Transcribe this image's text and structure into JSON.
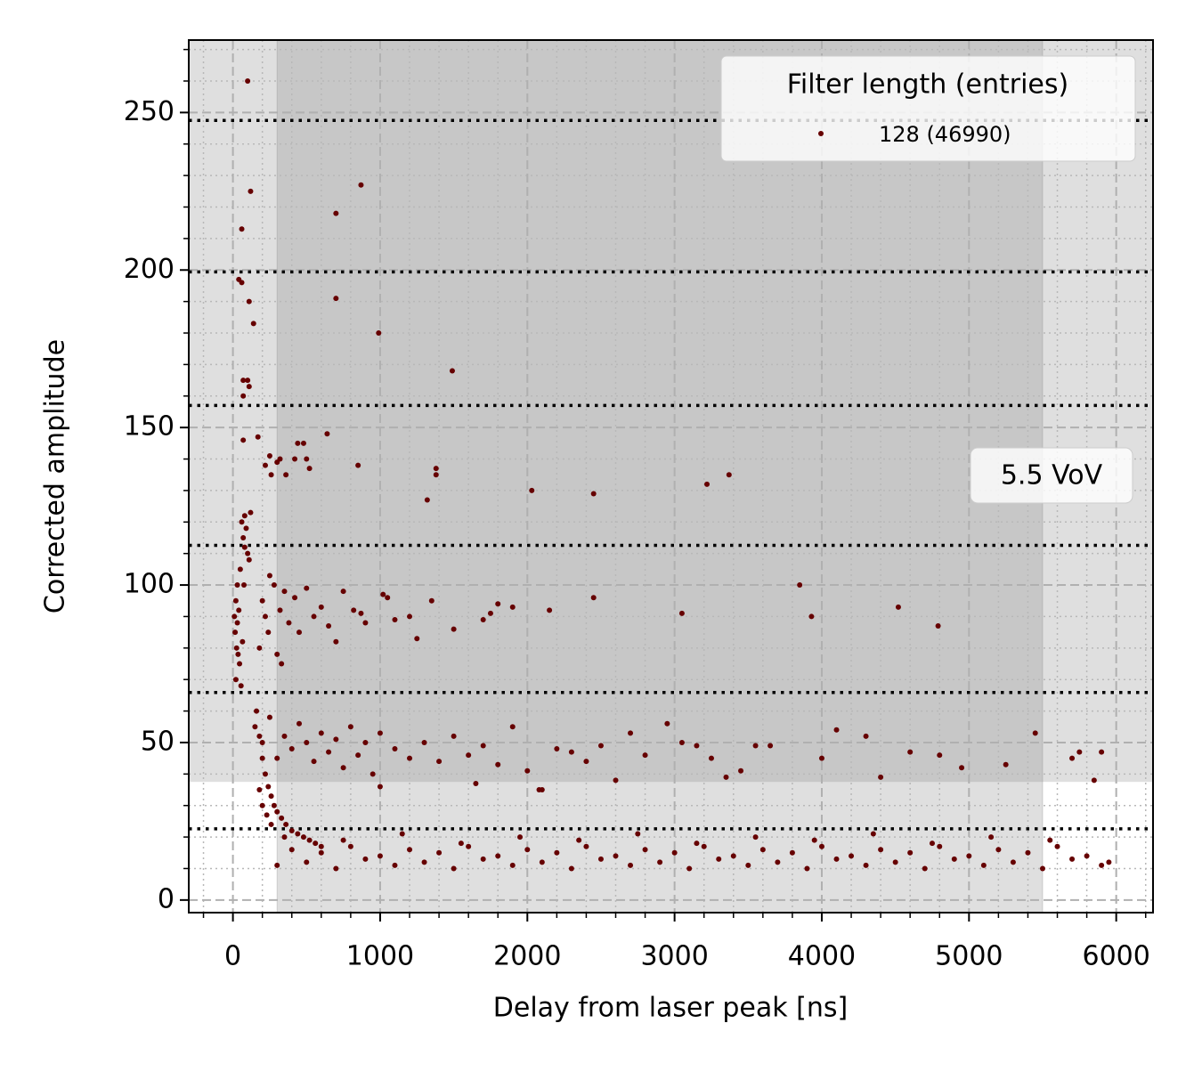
{
  "chart_data": {
    "type": "scatter",
    "xlabel": "Delay from laser peak [ns]",
    "ylabel": "Corrected amplitude",
    "annotation": "5.5 VoV",
    "legend_title": "Filter length (entries)",
    "legend": "upper right",
    "xlim": [
      -300,
      6250
    ],
    "ylim": [
      -4,
      273
    ],
    "xticks": [
      0,
      1000,
      2000,
      3000,
      4000,
      5000,
      6000
    ],
    "yticks": [
      0,
      50,
      100,
      150,
      200,
      250
    ],
    "xminor": [
      -200,
      200,
      400,
      600,
      800,
      1200,
      1400,
      1600,
      1800,
      2200,
      2400,
      2600,
      2800,
      3200,
      3400,
      3600,
      3800,
      4200,
      4400,
      4600,
      4800,
      5200,
      5400,
      5600,
      5800,
      6200
    ],
    "yminor": [
      10,
      20,
      30,
      40,
      60,
      70,
      80,
      90,
      110,
      120,
      130,
      140,
      160,
      170,
      180,
      190,
      210,
      220,
      230,
      240,
      260,
      270
    ],
    "grid": true,
    "shaded_x": [
      300,
      5500
    ],
    "shaded_y_min": 37.5,
    "hlines": [
      22.6,
      65.9,
      112.6,
      157,
      199.4,
      247.5
    ],
    "series": [
      {
        "name": "128 (46990)",
        "color": "#660000",
        "x": [
          100,
          120,
          870,
          700,
          60,
          40,
          60,
          700,
          110,
          140,
          990,
          1490,
          70,
          100,
          110,
          70,
          640,
          170,
          70,
          440,
          480,
          500,
          420,
          320,
          220,
          850,
          1380,
          1380,
          3370,
          3220,
          2030,
          2450,
          1320,
          260,
          360,
          520,
          250,
          300,
          80,
          90,
          60,
          70,
          80,
          100,
          110,
          120,
          50,
          30,
          20,
          10,
          15,
          25,
          35,
          45,
          20,
          30,
          40,
          55,
          65,
          75,
          200,
          250,
          280,
          320,
          350,
          380,
          420,
          450,
          500,
          550,
          600,
          650,
          700,
          750,
          820,
          870,
          900,
          1020,
          1050,
          1100,
          1200,
          1250,
          1350,
          1500,
          1700,
          1750,
          1800,
          1900,
          2150,
          2450,
          3050,
          3850,
          3930,
          4520,
          4790,
          220,
          240,
          300,
          330,
          180,
          150,
          200,
          250,
          300,
          350,
          400,
          450,
          500,
          550,
          600,
          650,
          700,
          750,
          800,
          850,
          900,
          950,
          1000,
          1100,
          1200,
          1300,
          1400,
          1500,
          1600,
          1700,
          1800,
          1900,
          2000,
          2100,
          2200,
          2300,
          2400,
          2500,
          2600,
          2700,
          2800,
          2950,
          3050,
          3150,
          3250,
          3350,
          3450,
          3550,
          3650,
          4000,
          4100,
          4300,
          4400,
          4600,
          4800,
          4950,
          5250,
          5450,
          5700,
          5750,
          5850,
          5900,
          1000,
          1650,
          2080,
          160,
          180,
          200,
          220,
          240,
          260,
          280,
          300,
          330,
          360,
          400,
          440,
          480,
          520,
          560,
          600,
          180,
          200,
          230,
          260,
          300,
          500,
          700,
          900,
          1100,
          1300,
          1500,
          1700,
          1900,
          2100,
          2300,
          2500,
          2700,
          2900,
          3100,
          3300,
          3500,
          3700,
          3900,
          4100,
          4300,
          4500,
          4700,
          4900,
          5100,
          5300,
          5500,
          5700,
          5900,
          400,
          600,
          800,
          1000,
          1200,
          1400,
          1600,
          1800,
          2000,
          2200,
          2400,
          2600,
          2800,
          3000,
          3200,
          3400,
          3600,
          3800,
          4000,
          4200,
          4400,
          4600,
          4800,
          5000,
          5200,
          5400,
          5600,
          5800,
          350,
          750,
          1150,
          1550,
          1950,
          2350,
          2750,
          3150,
          3550,
          3950,
          4350,
          4750,
          5150,
          5550,
          5950
        ],
        "values": [
          260,
          225,
          227,
          218,
          213,
          197,
          196,
          191,
          190,
          183,
          180,
          168,
          165,
          165,
          163,
          160,
          148,
          147,
          146,
          145,
          145,
          140,
          140,
          140,
          138,
          138,
          137,
          135,
          135,
          132,
          130,
          129,
          127,
          135,
          135,
          137,
          141,
          139,
          122,
          118,
          120,
          115,
          112,
          110,
          108,
          123,
          105,
          100,
          95,
          90,
          85,
          80,
          78,
          75,
          70,
          88,
          92,
          68,
          82,
          100,
          95,
          103,
          100,
          92,
          98,
          88,
          96,
          85,
          99,
          90,
          93,
          87,
          82,
          98,
          92,
          91,
          88,
          97,
          96,
          89,
          90,
          83,
          95,
          86,
          89,
          91,
          94,
          93,
          92,
          96,
          91,
          100,
          90,
          93,
          87,
          90,
          85,
          78,
          75,
          80,
          55,
          50,
          58,
          45,
          52,
          48,
          56,
          50,
          44,
          53,
          47,
          51,
          42,
          55,
          46,
          50,
          40,
          53,
          48,
          45,
          50,
          44,
          52,
          46,
          49,
          43,
          55,
          41,
          35,
          48,
          47,
          44,
          49,
          38,
          53,
          46,
          56,
          50,
          49,
          45,
          39,
          41,
          49,
          49,
          45,
          54,
          52,
          39,
          47,
          46,
          42,
          43,
          53,
          45,
          47,
          38,
          47,
          36,
          37,
          35,
          60,
          52,
          45,
          40,
          36,
          33,
          30,
          28,
          26,
          24,
          22,
          21,
          20,
          19,
          18,
          17,
          35,
          30,
          27,
          24,
          11,
          12,
          10,
          13,
          11,
          12,
          10,
          13,
          11,
          12,
          10,
          13,
          11,
          12,
          10,
          13,
          11,
          12,
          10,
          13,
          11,
          12,
          10,
          13,
          11,
          12,
          10,
          13,
          11,
          16,
          15,
          17,
          14,
          16,
          15,
          17,
          14,
          16,
          15,
          17,
          14,
          16,
          15,
          17,
          14,
          16,
          15,
          17,
          14,
          16,
          15,
          17,
          14,
          16,
          15,
          17,
          14,
          20,
          19,
          21,
          18,
          20,
          19,
          21,
          18,
          20,
          19,
          21,
          18,
          20,
          19,
          12
        ]
      }
    ]
  }
}
